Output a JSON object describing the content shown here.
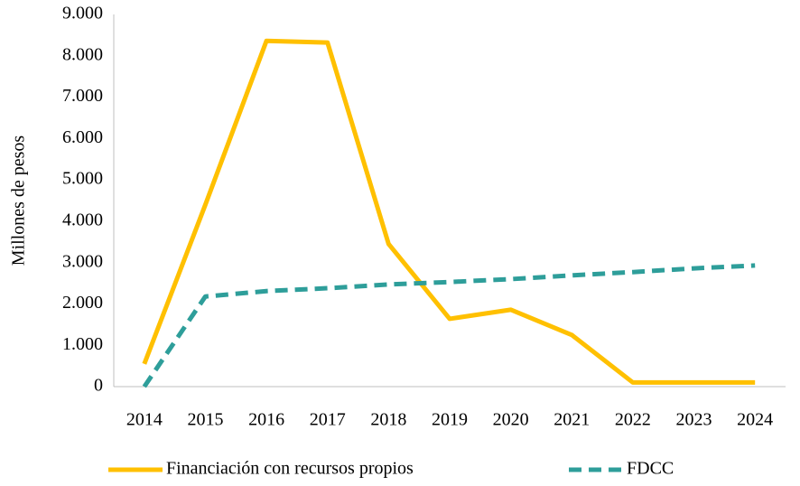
{
  "chart_data": {
    "type": "line",
    "y_label": "Millones de pesos",
    "categories": [
      "2014",
      "2015",
      "2016",
      "2017",
      "2018",
      "2019",
      "2020",
      "2021",
      "2022",
      "2023",
      "2024"
    ],
    "series": [
      {
        "name": "Financiación con recursos propios",
        "color": "#ffc000",
        "dashed": false,
        "values": [
          550,
          4400,
          8360,
          8320,
          3450,
          1640,
          1860,
          1250,
          100,
          100,
          100
        ]
      },
      {
        "name": "FDCC",
        "color": "#2e9e9a",
        "dashed": true,
        "values": [
          0,
          2180,
          2310,
          2380,
          2470,
          2530,
          2600,
          2690,
          2770,
          2860,
          2930
        ]
      }
    ],
    "ylim": [
      0,
      9000
    ],
    "yticks": [
      0,
      {
        "value": 1000,
        "label": "1.000"
      },
      {
        "value": 2000,
        "label": "2.000"
      },
      {
        "value": 3000,
        "label": "3.000"
      },
      {
        "value": 4000,
        "label": "4.000"
      },
      {
        "value": 5000,
        "label": "5.000"
      },
      {
        "value": 6000,
        "label": "6.000"
      },
      {
        "value": 7000,
        "label": "7.000"
      },
      {
        "value": 8000,
        "label": "8.000"
      },
      {
        "value": 9000,
        "label": "9.000"
      }
    ],
    "grid": false,
    "legend": "bottom"
  }
}
